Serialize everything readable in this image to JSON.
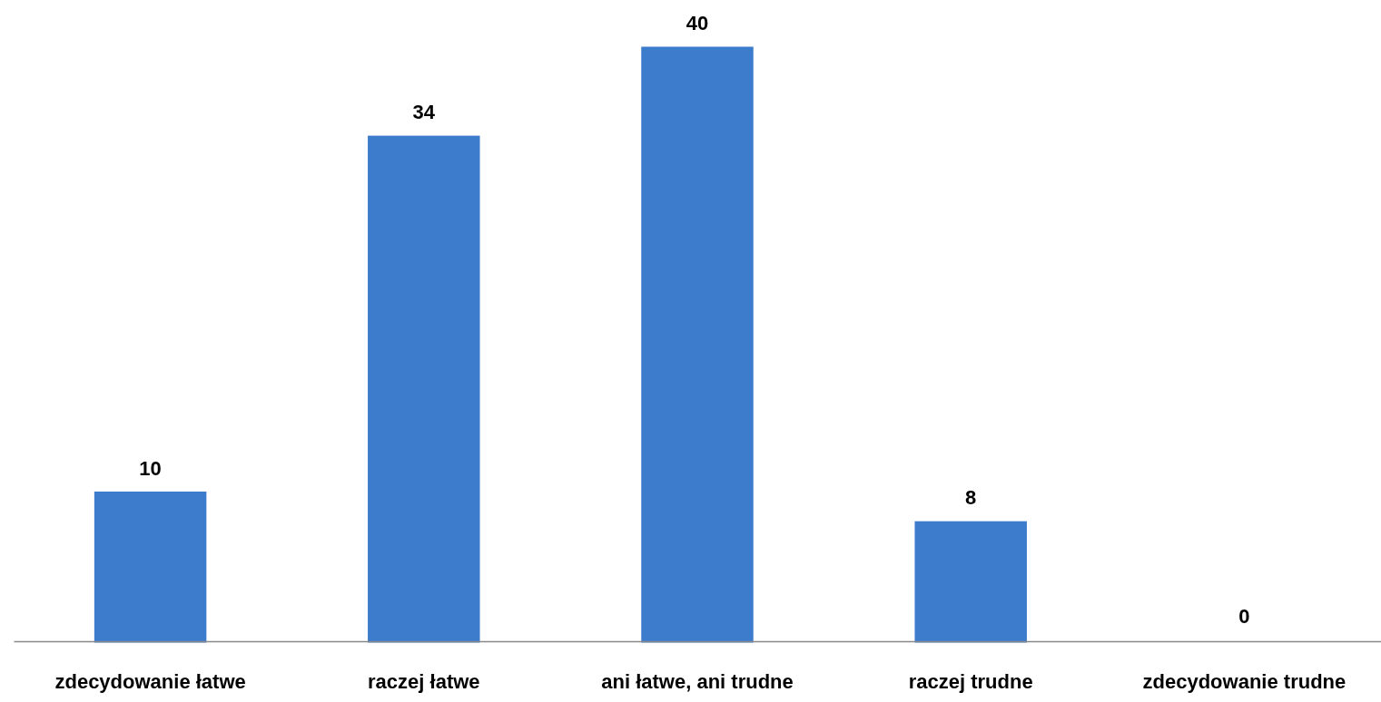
{
  "chart_data": {
    "type": "bar",
    "categories": [
      "zdecydowanie łatwe",
      "raczej łatwe",
      "ani łatwe, ani trudne",
      "raczej trudne",
      "zdecydowanie trudne"
    ],
    "values": [
      10,
      34,
      40,
      8,
      0
    ],
    "color": "#3d7ccc",
    "data_labels": true
  }
}
